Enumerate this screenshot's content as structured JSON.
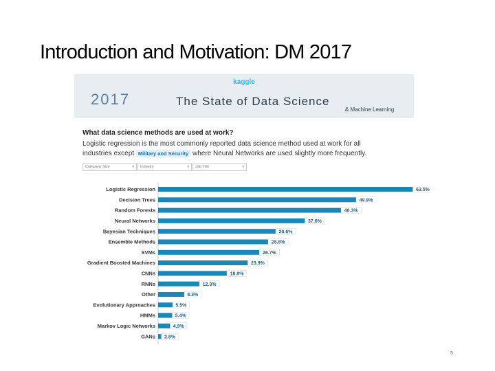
{
  "slide": {
    "title": "Introduction and Motivation: DM 2017",
    "page_number": "5"
  },
  "banner": {
    "brand": "kaggle",
    "year": "2017",
    "title": "The State of Data Science",
    "subtitle": "& Machine Learning"
  },
  "survey": {
    "question": "What data science methods are used at work?",
    "desc_line1": "Logistic regression is the most commonly reported data science method used at work for all",
    "desc_line2_pre": "industries except",
    "chip": "Military and Security",
    "desc_line2_post": "where Neural Networks are used slightly more frequently.",
    "filters": [
      "Company Size",
      "Industry",
      "Job Title"
    ]
  },
  "colors": {
    "bar": "#1a87b8",
    "label_box": "#ffffff",
    "banner_bg": "#e8edf2",
    "kaggle_blue": "#20beff"
  },
  "chart_data": {
    "type": "bar",
    "orientation": "horizontal",
    "categories": [
      "Logistic Regression",
      "Decision Trees",
      "Random Forests",
      "Neural Networks",
      "Bayesian Techniques",
      "Ensemble Methods",
      "SVMs",
      "Gradient Boosted Machines",
      "CNNs",
      "RNNs",
      "Other",
      "Evolutionary Approaches",
      "HMMs",
      "Markov Logic Networks",
      "GANs"
    ],
    "values": [
      63.5,
      49.9,
      46.3,
      37.6,
      30.6,
      28.8,
      26.7,
      23.9,
      18.9,
      12.3,
      8.3,
      5.5,
      5.4,
      4.9,
      2.8
    ],
    "value_labels": [
      "63.5%",
      "49.9%",
      "46.3%",
      "37.6%",
      "30.6%",
      "28.8%",
      "26.7%",
      "23.9%",
      "18.9%",
      "12.3%",
      "8.3%",
      "5.5%",
      "5.4%",
      "4.9%",
      "2.8%"
    ],
    "xlim": [
      0,
      65
    ]
  }
}
